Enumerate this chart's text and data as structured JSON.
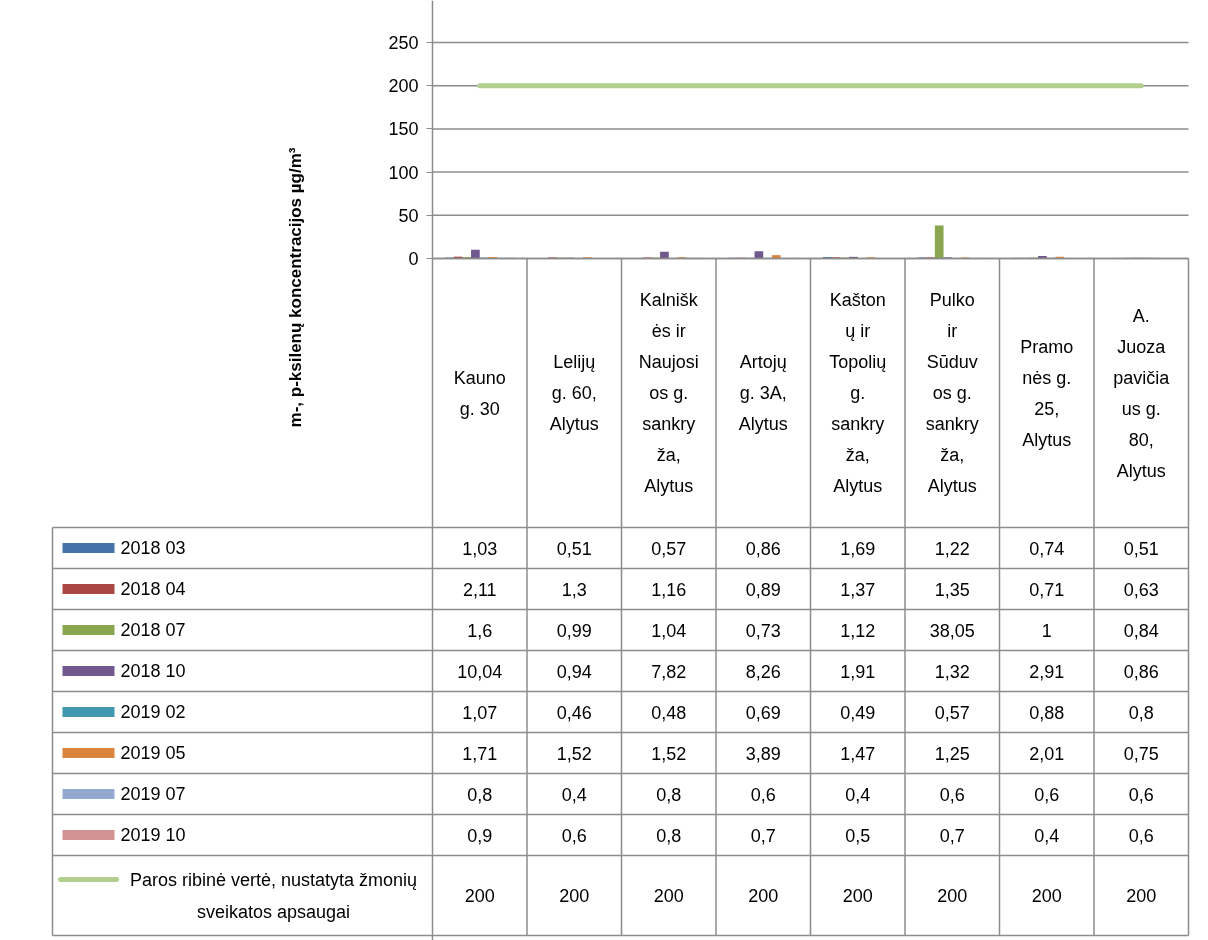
{
  "chart_data": {
    "type": "bar",
    "ylabel": "m-, p-ksilenų koncentracijos µg/m³",
    "categories": [
      "Kauno g. 30",
      "Lelijų g. 60, Alytus",
      "Kalniškės ir Naujosios g. sankryža, Alytus",
      "Artojų g. 3A, Alytus",
      "Kaštonų ir Topolių g. sankryža, Alytus",
      "Pulko ir Sūduvos g. sankryža, Alytus",
      "Pramonės g. 25, Alytus",
      "A. Juozapavičiaus g. 80, Alytus"
    ],
    "ylim": [
      0,
      250
    ],
    "yticks": [
      0,
      50,
      100,
      150,
      200,
      250
    ],
    "grid": "y",
    "legend": "bottom",
    "series": [
      {
        "name": "2018 03",
        "color": "#4572a7",
        "values": [
          1.03,
          0.51,
          0.57,
          0.86,
          1.69,
          1.22,
          0.74,
          0.51
        ],
        "value_labels": [
          "1,03",
          "0,51",
          "0,57",
          "0,86",
          "1,69",
          "1,22",
          "0,74",
          "0,51"
        ]
      },
      {
        "name": "2018 04",
        "color": "#aa4643",
        "values": [
          2.11,
          1.3,
          1.16,
          0.89,
          1.37,
          1.35,
          0.71,
          0.63
        ],
        "value_labels": [
          "2,11",
          "1,3",
          "1,16",
          "0,89",
          "1,37",
          "1,35",
          "0,71",
          "0,63"
        ]
      },
      {
        "name": "2018 07",
        "color": "#89a54e",
        "values": [
          1.6,
          0.99,
          1.04,
          0.73,
          1.12,
          38.05,
          1,
          0.84
        ],
        "value_labels": [
          "1,6",
          "0,99",
          "1,04",
          "0,73",
          "1,12",
          "38,05",
          "1",
          "0,84"
        ]
      },
      {
        "name": "2018 10",
        "color": "#71588f",
        "values": [
          10.04,
          0.94,
          7.82,
          8.26,
          1.91,
          1.32,
          2.91,
          0.86
        ],
        "value_labels": [
          "10,04",
          "0,94",
          "7,82",
          "8,26",
          "1,91",
          "1,32",
          "2,91",
          "0,86"
        ]
      },
      {
        "name": "2019 02",
        "color": "#4198af",
        "values": [
          1.07,
          0.46,
          0.48,
          0.69,
          0.49,
          0.57,
          0.88,
          0.8
        ],
        "value_labels": [
          "1,07",
          "0,46",
          "0,48",
          "0,69",
          "0,49",
          "0,57",
          "0,88",
          "0,8"
        ]
      },
      {
        "name": "2019 05",
        "color": "#db843d",
        "values": [
          1.71,
          1.52,
          1.52,
          3.89,
          1.47,
          1.25,
          2.01,
          0.75
        ],
        "value_labels": [
          "1,71",
          "1,52",
          "1,52",
          "3,89",
          "1,47",
          "1,25",
          "2,01",
          "0,75"
        ]
      },
      {
        "name": "2019 07",
        "color": "#93a9cf",
        "values": [
          0.8,
          0.4,
          0.8,
          0.6,
          0.4,
          0.6,
          0.6,
          0.6
        ],
        "value_labels": [
          "0,8",
          "0,4",
          "0,8",
          "0,6",
          "0,4",
          "0,6",
          "0,6",
          "0,6"
        ]
      },
      {
        "name": "2019 10",
        "color": "#d19392",
        "values": [
          0.9,
          0.6,
          0.8,
          0.7,
          0.5,
          0.7,
          0.4,
          0.6
        ],
        "value_labels": [
          "0,9",
          "0,6",
          "0,8",
          "0,7",
          "0,5",
          "0,7",
          "0,4",
          "0,6"
        ]
      },
      {
        "name": "Paros ribinė vertė, nustatyta žmonių sveikatos apsaugai",
        "color": "#b3cf8f",
        "type": "line",
        "values": [
          200,
          200,
          200,
          200,
          200,
          200,
          200,
          200
        ],
        "value_labels": [
          "200",
          "200",
          "200",
          "200",
          "200",
          "200",
          "200",
          "200"
        ]
      }
    ]
  }
}
